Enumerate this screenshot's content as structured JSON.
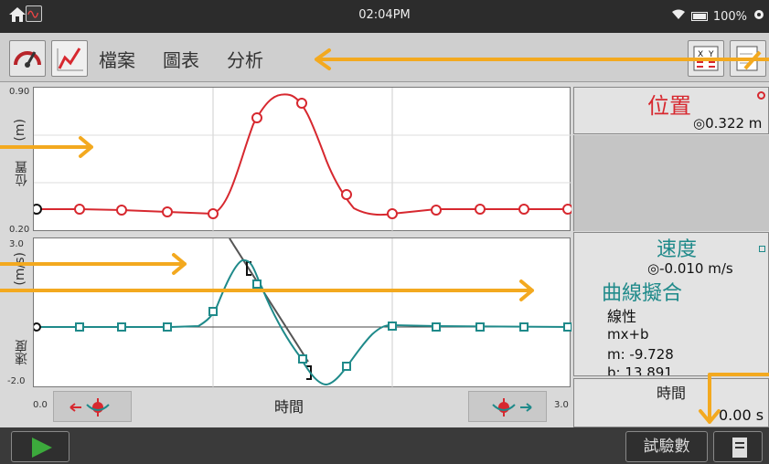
{
  "status": {
    "time": "02:04PM",
    "battery": "100%"
  },
  "menu": {
    "file": "檔案",
    "graph": "圖表",
    "analyze": "分析"
  },
  "top_graph": {
    "ylabel": "位置",
    "yunit": "(m)",
    "ymax": "0.90",
    "ymin": "0.20"
  },
  "bottom_graph": {
    "ylabel": "速度",
    "yunit": "(m/s)",
    "ymax": "3.0",
    "ymin": "-2.0"
  },
  "xaxis": {
    "label": "時間",
    "xmin": "0.0",
    "xmax": "3.0"
  },
  "meters": {
    "position": {
      "title": "位置",
      "value": "0.322 m"
    },
    "velocity": {
      "title": "速度",
      "value": "-0.010 m/s"
    },
    "time": {
      "title": "時間",
      "value": "0.00 s"
    }
  },
  "curve_fit": {
    "title": "曲線擬合",
    "type": "線性",
    "equation": "mx+b",
    "m": "m: -9.728",
    "b": "b: 13.891"
  },
  "bottom": {
    "experiments": "試驗數"
  },
  "colors": {
    "position": "#d7282f",
    "velocity": "#1f8a8a",
    "arrow": "#f3a91f"
  },
  "icons": [
    "home-icon",
    "wave-icon",
    "wifi-icon",
    "battery-icon",
    "gear-icon",
    "meter-icon",
    "graph-icon",
    "table-icon",
    "notes-icon",
    "play-icon",
    "data-set-icon"
  ]
}
